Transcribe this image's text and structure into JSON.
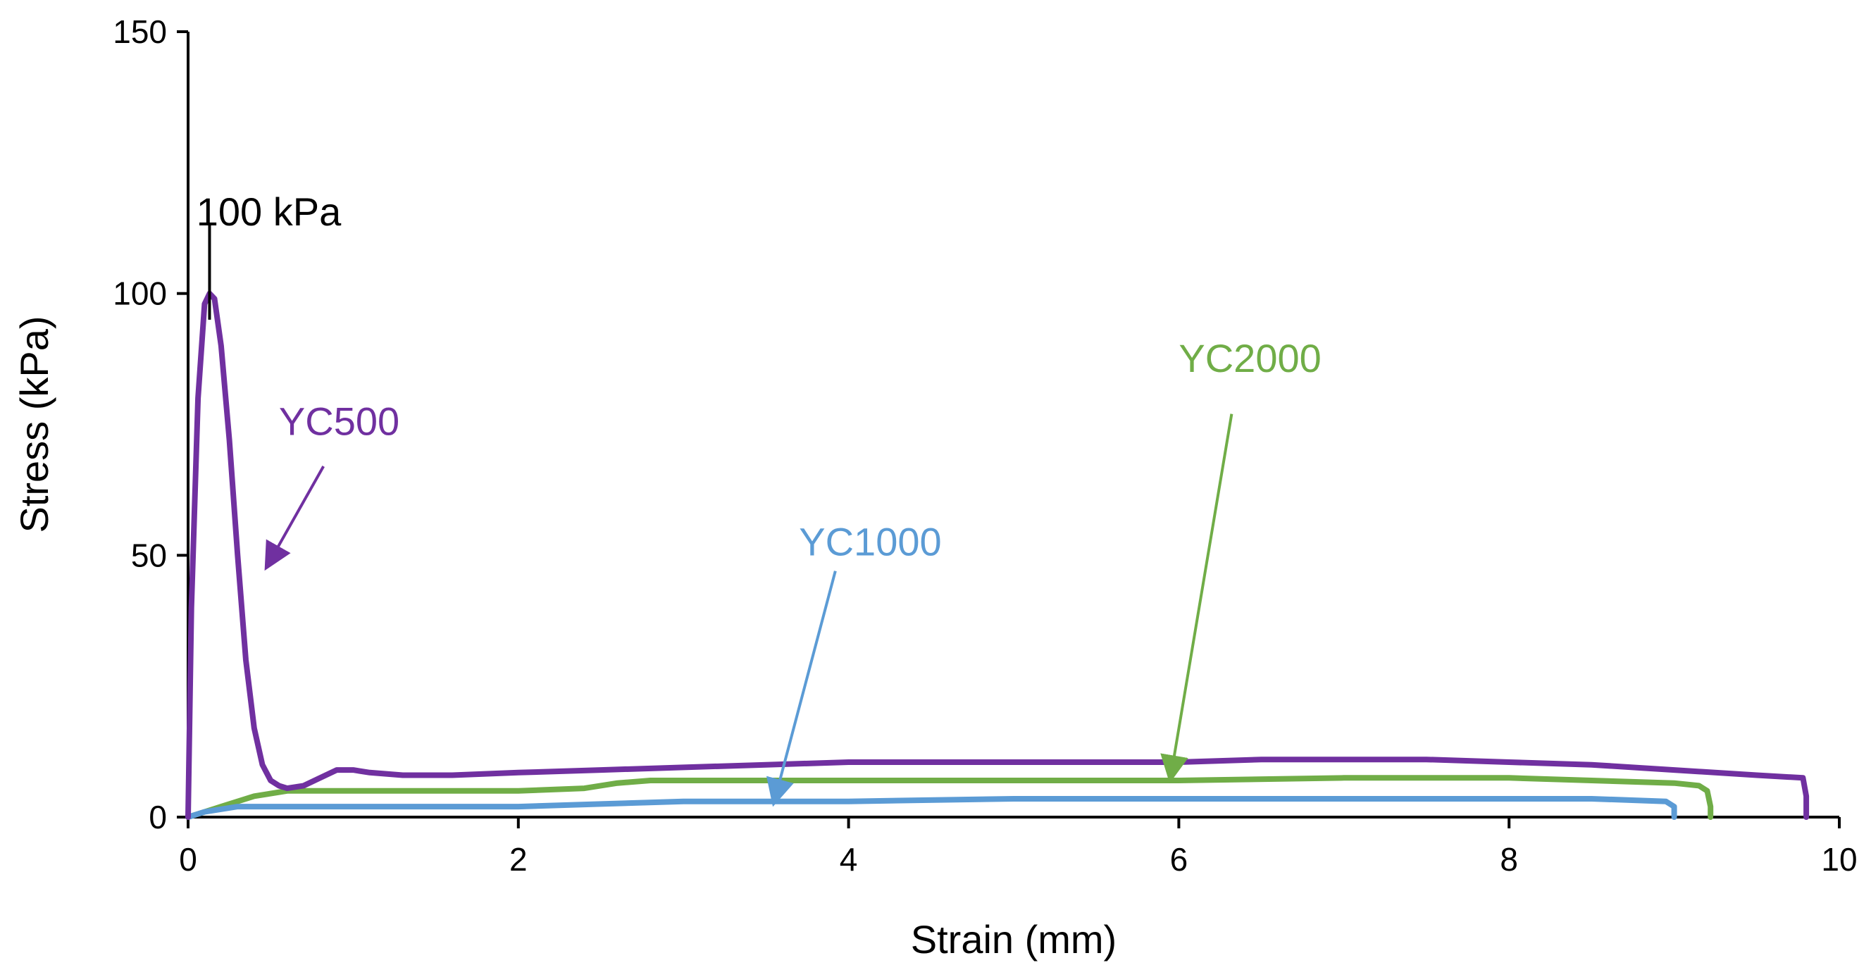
{
  "chart_data": {
    "type": "line",
    "xlabel": "Strain (mm)",
    "ylabel": "Stress (kPa)",
    "xlim": [
      0,
      10
    ],
    "ylim": [
      0,
      150
    ],
    "xticks": [
      "0",
      "2",
      "4",
      "6",
      "8",
      "10"
    ],
    "yticks": [
      "0",
      "50",
      "100",
      "150"
    ],
    "grid": false,
    "series": [
      {
        "name": "YC500",
        "color": "#7030a0",
        "x": [
          0,
          0.02,
          0.06,
          0.1,
          0.13,
          0.16,
          0.2,
          0.25,
          0.3,
          0.35,
          0.4,
          0.45,
          0.5,
          0.55,
          0.6,
          0.7,
          0.8,
          0.9,
          1.0,
          1.1,
          1.3,
          1.6,
          2.0,
          2.5,
          3.0,
          3.5,
          4.0,
          5.0,
          6.0,
          6.5,
          7.0,
          7.5,
          8.0,
          8.5,
          9.0,
          9.5,
          9.78,
          9.8,
          9.8
        ],
        "y": [
          0,
          40,
          80,
          98,
          100,
          99,
          90,
          72,
          50,
          30,
          17,
          10,
          7,
          6,
          5.5,
          6,
          7.5,
          9,
          9,
          8.5,
          8,
          8,
          8.5,
          9,
          9.5,
          10,
          10.5,
          10.5,
          10.5,
          11,
          11,
          11,
          10.5,
          10,
          9,
          8,
          7.5,
          4,
          0
        ]
      },
      {
        "name": "YC1000",
        "color": "#5b9bd5",
        "x": [
          0,
          0.1,
          0.3,
          0.5,
          1.0,
          1.5,
          2.0,
          2.5,
          3.0,
          3.5,
          4.0,
          5.0,
          6.0,
          7.0,
          8.0,
          8.5,
          8.95,
          9.0,
          9.0
        ],
        "y": [
          0,
          1,
          2,
          2,
          2,
          2,
          2,
          2.5,
          3,
          3,
          3,
          3.5,
          3.5,
          3.5,
          3.5,
          3.5,
          3,
          2,
          0
        ]
      },
      {
        "name": "YC2000",
        "color": "#70ad47",
        "x": [
          0,
          0.2,
          0.4,
          0.6,
          1.0,
          1.5,
          2.0,
          2.4,
          2.6,
          2.8,
          3.0,
          4.0,
          5.0,
          6.0,
          7.0,
          8.0,
          8.5,
          9.0,
          9.15,
          9.2,
          9.22,
          9.22
        ],
        "y": [
          0,
          2,
          4,
          5,
          5,
          5,
          5,
          5.5,
          6.5,
          7,
          7,
          7,
          7,
          7,
          7.5,
          7.5,
          7,
          6.5,
          6,
          5,
          2,
          0
        ]
      }
    ],
    "annotations": [
      {
        "text": "100 kPa",
        "color": "#000000",
        "label_x": 0.05,
        "label_y": 113,
        "line_from": [
          0.13,
          113
        ],
        "line_to": [
          0.13,
          95
        ]
      },
      {
        "text": "YC500",
        "color": "#7030a0",
        "label_x": 0.55,
        "label_y": 73,
        "arrow_from": [
          0.82,
          67
        ],
        "arrow_to": [
          0.48,
          48
        ]
      },
      {
        "text": "YC1000",
        "color": "#5b9bd5",
        "label_x": 3.7,
        "label_y": 50,
        "arrow_from": [
          3.92,
          47
        ],
        "arrow_to": [
          3.55,
          3
        ]
      },
      {
        "text": "YC2000",
        "color": "#70ad47",
        "label_x": 6.0,
        "label_y": 85,
        "arrow_from": [
          6.32,
          77
        ],
        "arrow_to": [
          5.95,
          7.5
        ]
      }
    ]
  }
}
